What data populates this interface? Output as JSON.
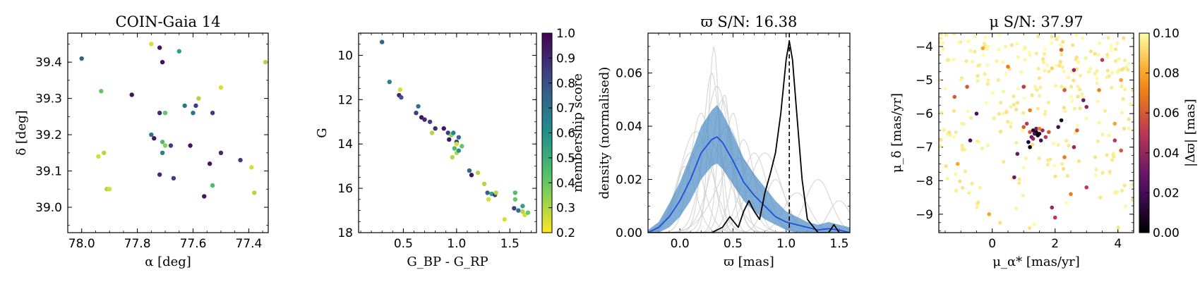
{
  "chart_data": [
    {
      "type": "scatter",
      "title": "COIN-Gaia 14",
      "xlabel": "α [deg]",
      "ylabel": "δ [deg]",
      "xlim": [
        78.05,
        77.33
      ],
      "ylim": [
        38.93,
        39.48
      ],
      "xticks": [
        78.0,
        77.8,
        77.6,
        77.4
      ],
      "xtick_labels": [
        "78.0",
        "77.8",
        "77.6",
        "77.4"
      ],
      "yticks": [
        39.0,
        39.1,
        39.2,
        39.3,
        39.4
      ],
      "ytick_labels": [
        "39.0",
        "39.1",
        "39.2",
        "39.3",
        "39.4"
      ],
      "points": [
        {
          "x": 78.0,
          "y": 39.41,
          "m": 0.75
        },
        {
          "x": 77.75,
          "y": 39.45,
          "m": 0.25
        },
        {
          "x": 77.72,
          "y": 39.44,
          "m": 0.95
        },
        {
          "x": 77.71,
          "y": 39.4,
          "m": 0.97
        },
        {
          "x": 77.65,
          "y": 39.43,
          "m": 0.55
        },
        {
          "x": 77.93,
          "y": 39.32,
          "m": 0.4
        },
        {
          "x": 77.82,
          "y": 39.31,
          "m": 0.95
        },
        {
          "x": 77.5,
          "y": 39.33,
          "m": 0.25
        },
        {
          "x": 77.34,
          "y": 39.4,
          "m": 0.3
        },
        {
          "x": 77.58,
          "y": 39.3,
          "m": 0.3
        },
        {
          "x": 77.59,
          "y": 39.28,
          "m": 0.85
        },
        {
          "x": 77.63,
          "y": 39.28,
          "m": 0.7
        },
        {
          "x": 77.72,
          "y": 39.26,
          "m": 0.9
        },
        {
          "x": 77.7,
          "y": 39.26,
          "m": 0.4
        },
        {
          "x": 77.6,
          "y": 39.26,
          "m": 0.7
        },
        {
          "x": 77.53,
          "y": 39.26,
          "m": 0.85
        },
        {
          "x": 77.75,
          "y": 39.2,
          "m": 0.7
        },
        {
          "x": 77.74,
          "y": 39.19,
          "m": 0.95
        },
        {
          "x": 77.71,
          "y": 39.18,
          "m": 0.45
        },
        {
          "x": 77.71,
          "y": 39.15,
          "m": 0.65
        },
        {
          "x": 77.68,
          "y": 39.17,
          "m": 0.85
        },
        {
          "x": 77.61,
          "y": 39.17,
          "m": 0.95
        },
        {
          "x": 77.7,
          "y": 39.17,
          "m": 0.35
        },
        {
          "x": 77.94,
          "y": 39.14,
          "m": 0.25
        },
        {
          "x": 77.92,
          "y": 39.15,
          "m": 0.3
        },
        {
          "x": 77.5,
          "y": 39.15,
          "m": 0.9
        },
        {
          "x": 77.43,
          "y": 39.13,
          "m": 0.85
        },
        {
          "x": 77.54,
          "y": 39.12,
          "m": 0.95
        },
        {
          "x": 77.39,
          "y": 39.11,
          "m": 0.25
        },
        {
          "x": 77.72,
          "y": 39.09,
          "m": 0.9
        },
        {
          "x": 77.67,
          "y": 39.08,
          "m": 0.85
        },
        {
          "x": 77.91,
          "y": 39.05,
          "m": 0.3
        },
        {
          "x": 77.9,
          "y": 39.05,
          "m": 0.25
        },
        {
          "x": 77.56,
          "y": 39.03,
          "m": 0.95
        },
        {
          "x": 77.53,
          "y": 39.06,
          "m": 0.45
        },
        {
          "x": 77.38,
          "y": 39.04,
          "m": 0.3
        }
      ]
    },
    {
      "type": "scatter",
      "title": "",
      "xlabel": "G_BP - G_RP",
      "ylabel": "G",
      "xlim": [
        0.08,
        1.75
      ],
      "ylim": [
        18,
        9
      ],
      "xticks": [
        0.5,
        1.0,
        1.5
      ],
      "xtick_labels": [
        "0.5",
        "1.0",
        "1.5"
      ],
      "yticks": [
        10,
        12,
        14,
        16,
        18
      ],
      "ytick_labels": [
        "10",
        "12",
        "14",
        "16",
        "18"
      ],
      "points": [
        {
          "x": 0.3,
          "y": 9.4,
          "m": 0.75
        },
        {
          "x": 0.37,
          "y": 11.2,
          "m": 0.65
        },
        {
          "x": 0.47,
          "y": 11.55,
          "m": 0.25
        },
        {
          "x": 0.46,
          "y": 11.8,
          "m": 0.9
        },
        {
          "x": 0.48,
          "y": 11.9,
          "m": 0.8
        },
        {
          "x": 0.64,
          "y": 12.3,
          "m": 0.7
        },
        {
          "x": 0.62,
          "y": 12.6,
          "m": 0.85
        },
        {
          "x": 0.67,
          "y": 12.8,
          "m": 0.95
        },
        {
          "x": 0.7,
          "y": 12.9,
          "m": 0.9
        },
        {
          "x": 0.75,
          "y": 13.0,
          "m": 0.85
        },
        {
          "x": 0.77,
          "y": 13.5,
          "m": 0.3
        },
        {
          "x": 0.8,
          "y": 13.3,
          "m": 0.9
        },
        {
          "x": 0.88,
          "y": 13.3,
          "m": 0.95
        },
        {
          "x": 0.92,
          "y": 13.5,
          "m": 0.85
        },
        {
          "x": 0.95,
          "y": 13.6,
          "m": 0.35
        },
        {
          "x": 0.97,
          "y": 13.5,
          "m": 0.65
        },
        {
          "x": 0.93,
          "y": 13.8,
          "m": 0.95
        },
        {
          "x": 1.0,
          "y": 13.9,
          "m": 0.85
        },
        {
          "x": 1.02,
          "y": 13.7,
          "m": 0.75
        },
        {
          "x": 0.98,
          "y": 14.2,
          "m": 0.45
        },
        {
          "x": 1.0,
          "y": 14.4,
          "m": 0.3
        },
        {
          "x": 1.05,
          "y": 14.1,
          "m": 0.4
        },
        {
          "x": 0.96,
          "y": 14.6,
          "m": 0.3
        },
        {
          "x": 1.02,
          "y": 14.3,
          "m": 0.6
        },
        {
          "x": 1.0,
          "y": 14.0,
          "m": 0.25
        },
        {
          "x": 1.12,
          "y": 15.2,
          "m": 0.75
        },
        {
          "x": 1.14,
          "y": 15.4,
          "m": 0.95
        },
        {
          "x": 1.2,
          "y": 15.3,
          "m": 0.3
        },
        {
          "x": 1.26,
          "y": 15.8,
          "m": 0.3
        },
        {
          "x": 1.29,
          "y": 16.2,
          "m": 0.75
        },
        {
          "x": 1.33,
          "y": 16.25,
          "m": 0.55
        },
        {
          "x": 1.36,
          "y": 16.3,
          "m": 0.85
        },
        {
          "x": 1.3,
          "y": 16.5,
          "m": 0.25
        },
        {
          "x": 1.37,
          "y": 16.2,
          "m": 0.3
        },
        {
          "x": 1.45,
          "y": 17.4,
          "m": 0.25
        },
        {
          "x": 1.55,
          "y": 16.2,
          "m": 0.45
        },
        {
          "x": 1.55,
          "y": 16.5,
          "m": 0.4
        },
        {
          "x": 1.54,
          "y": 16.9,
          "m": 0.85
        },
        {
          "x": 1.58,
          "y": 17.0,
          "m": 0.7
        },
        {
          "x": 1.62,
          "y": 17.05,
          "m": 0.3
        },
        {
          "x": 1.64,
          "y": 17.2,
          "m": 0.25
        },
        {
          "x": 1.67,
          "y": 17.1,
          "m": 0.4
        },
        {
          "x": 1.62,
          "y": 16.8,
          "m": 0.55
        }
      ],
      "colorbar": {
        "label": "membership score",
        "range": [
          0.2,
          1.0
        ],
        "ticks": [
          0.2,
          0.3,
          0.4,
          0.5,
          0.6,
          0.7,
          0.8,
          0.9,
          1.0
        ],
        "tick_labels": [
          "0.2",
          "0.3",
          "0.4",
          "0.5",
          "0.6",
          "0.7",
          "0.8",
          "0.9",
          "1.0"
        ]
      }
    },
    {
      "type": "line",
      "title": "ϖ S/N: 16.38",
      "xlabel": "ϖ [mas]",
      "ylabel": "density (normalised)",
      "xlim": [
        -0.3,
        1.6
      ],
      "ylim": [
        0,
        0.075
      ],
      "xticks": [
        0.0,
        0.5,
        1.0,
        1.5
      ],
      "xtick_labels": [
        "0.0",
        "0.5",
        "1.0",
        "1.5"
      ],
      "yticks": [
        0,
        0.02,
        0.04,
        0.06
      ],
      "ytick_labels": [
        "0.00",
        "0.02",
        "0.04",
        "0.06"
      ],
      "vline_x": 1.03,
      "series": [
        {
          "name": "mean",
          "x": [
            -0.3,
            -0.2,
            -0.1,
            0.0,
            0.1,
            0.2,
            0.3,
            0.35,
            0.4,
            0.5,
            0.6,
            0.7,
            0.8,
            0.9,
            1.0,
            1.1,
            1.2,
            1.3,
            1.4,
            1.5,
            1.6
          ],
          "y": [
            0.0,
            0.002,
            0.006,
            0.012,
            0.02,
            0.03,
            0.035,
            0.036,
            0.034,
            0.027,
            0.019,
            0.014,
            0.01,
            0.006,
            0.004,
            0.003,
            0.002,
            0.001,
            0.0015,
            0.001,
            0.0
          ],
          "lo": [
            0.0,
            0.0,
            0.002,
            0.006,
            0.012,
            0.02,
            0.025,
            0.026,
            0.024,
            0.018,
            0.012,
            0.008,
            0.005,
            0.003,
            0.001,
            0.0,
            0.0,
            0.0,
            0.0,
            0.0,
            0.0
          ],
          "hi": [
            0.001,
            0.004,
            0.011,
            0.019,
            0.029,
            0.04,
            0.046,
            0.048,
            0.045,
            0.037,
            0.028,
            0.022,
            0.017,
            0.012,
            0.008,
            0.006,
            0.004,
            0.003,
            0.004,
            0.003,
            0.002
          ]
        },
        {
          "name": "cluster",
          "x": [
            -0.3,
            0.3,
            0.4,
            0.47,
            0.55,
            0.6,
            0.65,
            0.7,
            0.75,
            0.8,
            0.85,
            0.9,
            0.95,
            1.0,
            1.03,
            1.06,
            1.1,
            1.15,
            1.2,
            1.3,
            1.4,
            1.45,
            1.5,
            1.6
          ],
          "y": [
            0.0,
            0.0,
            0.002,
            0.006,
            0.002,
            0.008,
            0.012,
            0.008,
            0.005,
            0.015,
            0.022,
            0.03,
            0.045,
            0.065,
            0.072,
            0.065,
            0.045,
            0.02,
            0.005,
            0.0,
            0.0,
            0.003,
            0.0,
            0.0
          ]
        }
      ],
      "samples": [
        {
          "c": 0.1,
          "w": 0.12,
          "a": 0.03
        },
        {
          "c": 0.2,
          "w": 0.1,
          "a": 0.045
        },
        {
          "c": 0.3,
          "w": 0.08,
          "a": 0.06
        },
        {
          "c": 0.4,
          "w": 0.1,
          "a": 0.05
        },
        {
          "c": 0.45,
          "w": 0.15,
          "a": 0.04
        },
        {
          "c": 0.25,
          "w": 0.2,
          "a": 0.035
        },
        {
          "c": 0.35,
          "w": 0.12,
          "a": 0.055
        },
        {
          "c": 0.6,
          "w": 0.1,
          "a": 0.035
        },
        {
          "c": 0.7,
          "w": 0.12,
          "a": 0.03
        },
        {
          "c": 0.5,
          "w": 0.08,
          "a": 0.045
        },
        {
          "c": 0.15,
          "w": 0.15,
          "a": 0.038
        },
        {
          "c": 0.05,
          "w": 0.1,
          "a": 0.025
        },
        {
          "c": 0.9,
          "w": 0.1,
          "a": 0.02
        },
        {
          "c": 1.1,
          "w": 0.12,
          "a": 0.015
        },
        {
          "c": 1.3,
          "w": 0.12,
          "a": 0.02
        },
        {
          "c": 1.5,
          "w": 0.1,
          "a": 0.012
        },
        {
          "c": 0.8,
          "w": 0.15,
          "a": 0.03
        },
        {
          "c": 0.55,
          "w": 0.2,
          "a": 0.028
        },
        {
          "c": 0.32,
          "w": 0.05,
          "a": 0.07
        },
        {
          "c": 0.42,
          "w": 0.06,
          "a": 0.052
        }
      ]
    },
    {
      "type": "scatter",
      "title": "μ S/N: 37.97",
      "xlabel": "μ_α* [mas/yr]",
      "ylabel": "μ_δ [mas/yr]",
      "xlim": [
        -1.7,
        4.5
      ],
      "ylim": [
        -9.55,
        -3.6
      ],
      "xticks": [
        0,
        2,
        4
      ],
      "xtick_labels": [
        "0",
        "2",
        "4"
      ],
      "yticks": [
        -9,
        -8,
        -7,
        -6,
        -5,
        -4
      ],
      "ytick_labels": [
        "−9",
        "−8",
        "−7",
        "−6",
        "−5",
        "−4"
      ],
      "field_count": 280,
      "points": [
        {
          "x": -0.3,
          "y": -4.05,
          "m": 0.08
        },
        {
          "x": 0.5,
          "y": -4.6,
          "m": 0.07
        },
        {
          "x": 2.2,
          "y": -4.1,
          "m": 0.06
        },
        {
          "x": 3.5,
          "y": -4.4,
          "m": 0.05
        },
        {
          "x": 1.9,
          "y": -4.65,
          "m": 0.09
        },
        {
          "x": 2.6,
          "y": -4.7,
          "m": 0.04
        },
        {
          "x": 4.1,
          "y": -5.0,
          "m": 0.08
        },
        {
          "x": -0.8,
          "y": -5.2,
          "m": 0.06
        },
        {
          "x": 1.0,
          "y": -5.2,
          "m": 0.05
        },
        {
          "x": 3.4,
          "y": -5.3,
          "m": 0.07
        },
        {
          "x": 2.9,
          "y": -5.6,
          "m": 0.03
        },
        {
          "x": -1.2,
          "y": -5.5,
          "m": 0.06
        },
        {
          "x": 1.2,
          "y": -5.9,
          "m": 0.07
        },
        {
          "x": -0.5,
          "y": -6.0,
          "m": 0.02
        },
        {
          "x": 3.0,
          "y": -5.8,
          "m": 0.04
        },
        {
          "x": 2.2,
          "y": -6.2,
          "m": 0.01
        },
        {
          "x": 1.1,
          "y": -6.3,
          "m": 0.05
        },
        {
          "x": 3.9,
          "y": -6.3,
          "m": 0.08
        },
        {
          "x": 1.3,
          "y": -6.5,
          "m": 0.01
        },
        {
          "x": 1.4,
          "y": -6.55,
          "m": 0.0
        },
        {
          "x": 1.35,
          "y": -6.6,
          "m": 0.02
        },
        {
          "x": 1.5,
          "y": -6.6,
          "m": 0.01
        },
        {
          "x": 1.45,
          "y": -6.65,
          "m": 0.0
        },
        {
          "x": 1.25,
          "y": -6.7,
          "m": 0.03
        },
        {
          "x": 1.6,
          "y": -6.5,
          "m": 0.04
        },
        {
          "x": 1.7,
          "y": -6.7,
          "m": 0.05
        },
        {
          "x": 1.55,
          "y": -6.8,
          "m": 0.02
        },
        {
          "x": 1.2,
          "y": -6.55,
          "m": 0.06
        },
        {
          "x": 1.4,
          "y": -6.45,
          "m": 0.03
        },
        {
          "x": 1.3,
          "y": -6.75,
          "m": 0.04
        },
        {
          "x": 1.8,
          "y": -6.55,
          "m": 0.06
        },
        {
          "x": 1.15,
          "y": -6.85,
          "m": 0.01
        },
        {
          "x": 1.5,
          "y": -6.45,
          "m": 0.07
        },
        {
          "x": 2.1,
          "y": -6.4,
          "m": 0.02
        },
        {
          "x": 2.7,
          "y": -6.5,
          "m": 0.06
        },
        {
          "x": 3.9,
          "y": -6.8,
          "m": 0.05
        },
        {
          "x": 1.2,
          "y": -7.0,
          "m": 0.0
        },
        {
          "x": 0.8,
          "y": -7.2,
          "m": 0.03
        },
        {
          "x": -0.7,
          "y": -6.8,
          "m": 0.02
        },
        {
          "x": 4.1,
          "y": -7.1,
          "m": 0.06
        },
        {
          "x": 2.3,
          "y": -7.3,
          "m": 0.07
        },
        {
          "x": -1.1,
          "y": -7.5,
          "m": 0.08
        },
        {
          "x": 0.7,
          "y": -7.9,
          "m": 0.03
        },
        {
          "x": 3.0,
          "y": -8.2,
          "m": 0.05
        },
        {
          "x": 2.5,
          "y": -8.4,
          "m": 0.07
        },
        {
          "x": 1.9,
          "y": -8.8,
          "m": 0.04
        },
        {
          "x": 2.0,
          "y": -9.1,
          "m": 0.05
        },
        {
          "x": -0.1,
          "y": -9.0,
          "m": 0.08
        },
        {
          "x": 2.6,
          "y": -7.0,
          "m": 0.04
        },
        {
          "x": 1.0,
          "y": -6.4,
          "m": 0.06
        },
        {
          "x": 2.3,
          "y": -5.3,
          "m": 0.06
        }
      ],
      "colorbar": {
        "label": "|Δϖ| [mas]",
        "range": [
          0.0,
          0.1
        ],
        "ticks": [
          0.0,
          0.02,
          0.04,
          0.06,
          0.08,
          0.1
        ],
        "tick_labels": [
          "0.00",
          "0.02",
          "0.04",
          "0.06",
          "0.08",
          "0.10"
        ]
      }
    }
  ]
}
